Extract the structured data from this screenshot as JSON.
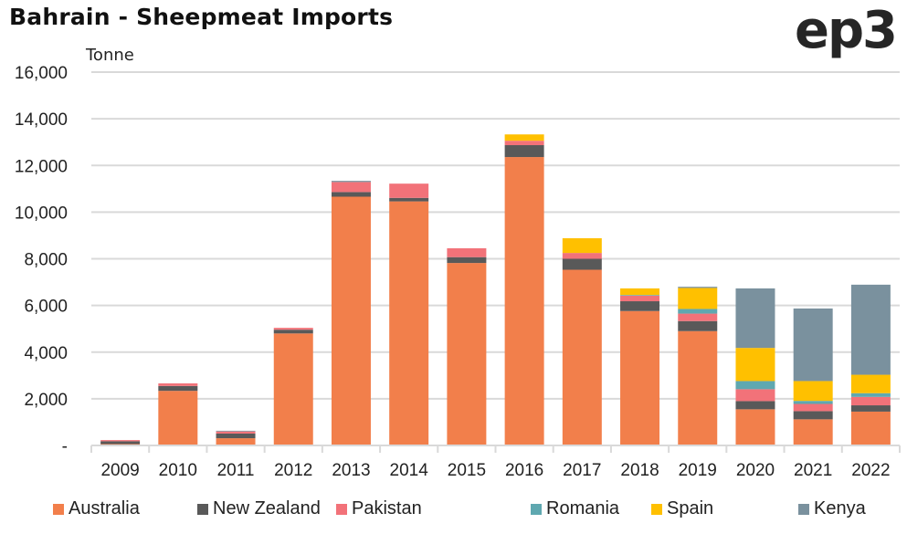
{
  "header": {
    "title": "Bahrain - Sheepmeat Imports",
    "logo": "ep3"
  },
  "chart_data": {
    "type": "bar",
    "stacked": true,
    "title": "Bahrain - Sheepmeat Imports",
    "ylabel": "Tonne",
    "xlabel": "",
    "ylim": [
      0,
      16000
    ],
    "yticks": [
      0,
      2000,
      4000,
      6000,
      8000,
      10000,
      12000,
      14000,
      16000
    ],
    "ytick_labels": [
      "-",
      "2,000",
      "4,000",
      "6,000",
      "8,000",
      "10,000",
      "12,000",
      "14,000",
      "16,000"
    ],
    "grid": true,
    "legend_position": "bottom",
    "categories": [
      "2009",
      "2010",
      "2011",
      "2012",
      "2013",
      "2014",
      "2015",
      "2016",
      "2017",
      "2018",
      "2019",
      "2020",
      "2021",
      "2022"
    ],
    "series": [
      {
        "name": "Australia",
        "color": "#F27F4B",
        "values": [
          60,
          2340,
          310,
          4800,
          10660,
          10460,
          7820,
          12360,
          7530,
          5760,
          4900,
          1550,
          1120,
          1450
        ]
      },
      {
        "name": "New Zealand",
        "color": "#595959",
        "values": [
          120,
          210,
          200,
          160,
          200,
          150,
          250,
          510,
          470,
          420,
          430,
          350,
          350,
          270
        ]
      },
      {
        "name": "Pakistan",
        "color": "#F27279",
        "values": [
          50,
          110,
          90,
          80,
          430,
          610,
          380,
          190,
          250,
          240,
          320,
          510,
          310,
          360
        ]
      },
      {
        "name": "Romania",
        "color": "#5FA8B0",
        "values": [
          0,
          0,
          0,
          0,
          0,
          0,
          0,
          0,
          0,
          30,
          200,
          350,
          130,
          160
        ]
      },
      {
        "name": "Spain",
        "color": "#FFC000",
        "values": [
          0,
          0,
          0,
          0,
          0,
          0,
          0,
          270,
          630,
          280,
          900,
          1420,
          850,
          790
        ]
      },
      {
        "name": "Kenya",
        "color": "#7A919E",
        "values": [
          0,
          0,
          30,
          0,
          50,
          0,
          0,
          0,
          0,
          0,
          50,
          2550,
          3110,
          3860
        ]
      }
    ]
  }
}
